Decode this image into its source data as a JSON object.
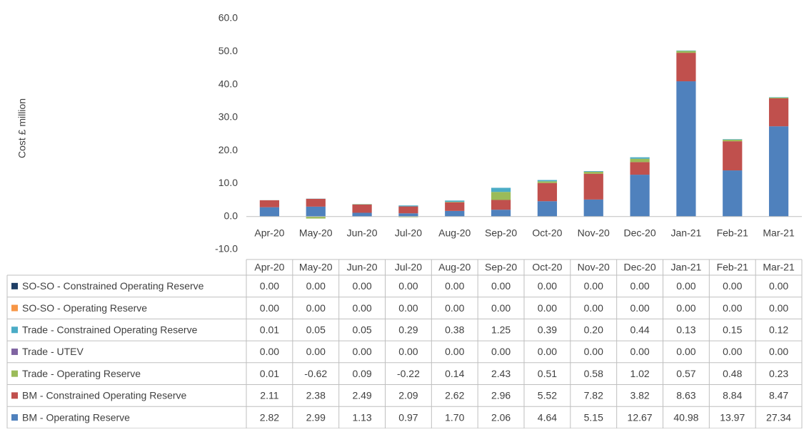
{
  "chart_data": {
    "type": "bar",
    "stacked": true,
    "y_label": "Cost £ million",
    "categories": [
      "Apr-20",
      "May-20",
      "Jun-20",
      "Jul-20",
      "Aug-20",
      "Sep-20",
      "Oct-20",
      "Nov-20",
      "Dec-20",
      "Jan-21",
      "Feb-21",
      "Mar-21"
    ],
    "ylim": [
      -10,
      60
    ],
    "yticks": [
      {
        "value": -10,
        "label": "-10.0"
      },
      {
        "value": 0,
        "label": "0.0"
      },
      {
        "value": 10,
        "label": "10.0"
      },
      {
        "value": 20,
        "label": "20.0"
      },
      {
        "value": 30,
        "label": "30.0"
      },
      {
        "value": 40,
        "label": "40.0"
      },
      {
        "value": 50,
        "label": "50.0"
      },
      {
        "value": 60,
        "label": "60.0"
      }
    ],
    "grid": false,
    "data_table": true,
    "series": [
      {
        "name": "SO-SO - Constrained Operating Reserve",
        "color": "#1f3f66",
        "values": [
          0,
          0,
          0,
          0,
          0,
          0,
          0,
          0,
          0,
          0,
          0,
          0
        ],
        "value_labels": [
          "0.00",
          "0.00",
          "0.00",
          "0.00",
          "0.00",
          "0.00",
          "0.00",
          "0.00",
          "0.00",
          "0.00",
          "0.00",
          "0.00"
        ]
      },
      {
        "name": "SO-SO - Operating Reserve",
        "color": "#f79646",
        "values": [
          0,
          0,
          0,
          0,
          0,
          0,
          0,
          0,
          0,
          0,
          0,
          0
        ],
        "value_labels": [
          "0.00",
          "0.00",
          "0.00",
          "0.00",
          "0.00",
          "0.00",
          "0.00",
          "0.00",
          "0.00",
          "0.00",
          "0.00",
          "0.00"
        ]
      },
      {
        "name": "Trade - Constrained Operating Reserve",
        "color": "#4bacc6",
        "values": [
          0.01,
          0.05,
          0.05,
          0.29,
          0.38,
          1.25,
          0.39,
          0.2,
          0.44,
          0.13,
          0.15,
          0.12
        ],
        "value_labels": [
          "0.01",
          "0.05",
          "0.05",
          "0.29",
          "0.38",
          "1.25",
          "0.39",
          "0.20",
          "0.44",
          "0.13",
          "0.15",
          "0.12"
        ]
      },
      {
        "name": "Trade - UTEV",
        "color": "#8064a2",
        "values": [
          0,
          0,
          0,
          0,
          0,
          0,
          0,
          0,
          0,
          0,
          0,
          0
        ],
        "value_labels": [
          "0.00",
          "0.00",
          "0.00",
          "0.00",
          "0.00",
          "0.00",
          "0.00",
          "0.00",
          "0.00",
          "0.00",
          "0.00",
          "0.00"
        ]
      },
      {
        "name": "Trade - Operating Reserve",
        "color": "#9bbb59",
        "values": [
          0.01,
          -0.62,
          0.09,
          -0.22,
          0.14,
          2.43,
          0.51,
          0.58,
          1.02,
          0.57,
          0.48,
          0.23
        ],
        "value_labels": [
          "0.01",
          "-0.62",
          "0.09",
          "-0.22",
          "0.14",
          "2.43",
          "0.51",
          "0.58",
          "1.02",
          "0.57",
          "0.48",
          "0.23"
        ]
      },
      {
        "name": "BM - Constrained Operating Reserve",
        "color": "#c0504d",
        "values": [
          2.11,
          2.38,
          2.49,
          2.09,
          2.62,
          2.96,
          5.52,
          7.82,
          3.82,
          8.63,
          8.84,
          8.47
        ],
        "value_labels": [
          "2.11",
          "2.38",
          "2.49",
          "2.09",
          "2.62",
          "2.96",
          "5.52",
          "7.82",
          "3.82",
          "8.63",
          "8.84",
          "8.47"
        ]
      },
      {
        "name": "BM - Operating Reserve",
        "color": "#4f81bd",
        "values": [
          2.82,
          2.99,
          1.13,
          0.97,
          1.7,
          2.06,
          4.64,
          5.15,
          12.67,
          40.98,
          13.97,
          27.34
        ],
        "value_labels": [
          "2.82",
          "2.99",
          "1.13",
          "0.97",
          "1.70",
          "2.06",
          "4.64",
          "5.15",
          "12.67",
          "40.98",
          "13.97",
          "27.34"
        ]
      }
    ]
  }
}
